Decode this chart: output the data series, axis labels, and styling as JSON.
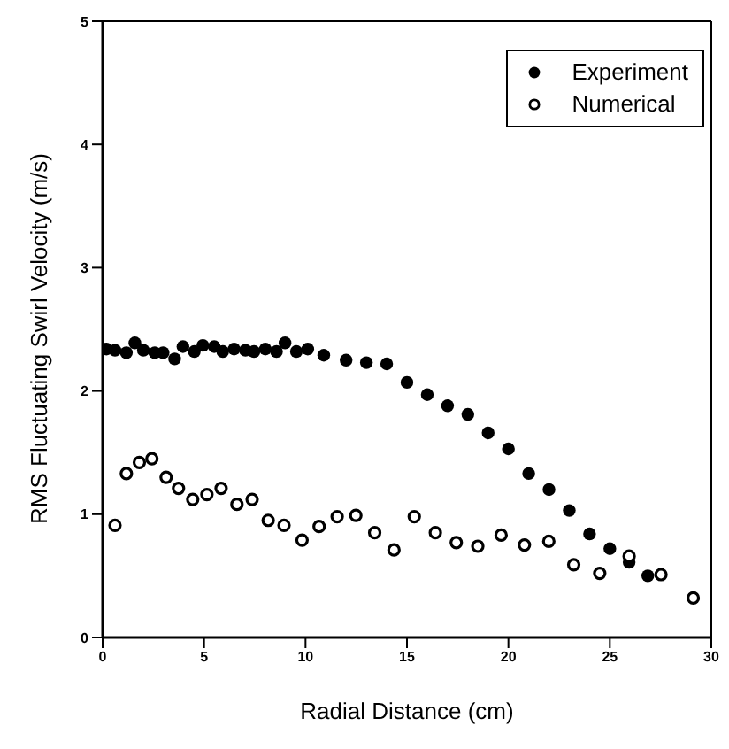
{
  "chart_data": {
    "type": "scatter",
    "xlabel": "Radial Distance (cm)",
    "ylabel": "RMS Fluctuating Swirl Velocity (m/s)",
    "xlim": [
      0,
      30
    ],
    "xticks": [
      0,
      5,
      10,
      15,
      20,
      25,
      30
    ],
    "ylim": [
      0,
      5
    ],
    "yticks": [
      0,
      1,
      2,
      3,
      4,
      5
    ],
    "grid": false,
    "legend": "top right",
    "marker": "circle",
    "series": [
      {
        "name": "Experiment",
        "color": "#000000",
        "x": [
          0.19,
          0.61,
          1.17,
          1.59,
          2.01,
          2.57,
          2.98,
          3.55,
          3.96,
          4.52,
          4.94,
          5.5,
          5.92,
          6.48,
          7.04,
          7.46,
          8.02,
          8.57,
          8.99,
          9.55,
          10.11,
          10.9,
          12.0,
          13.0,
          14.0,
          15.0,
          16.0,
          17.0,
          18.0,
          19.0,
          20.0,
          21.0,
          22.0,
          23.0,
          24.0,
          25.0,
          25.95,
          26.87
        ],
        "values": [
          2.34,
          2.33,
          2.31,
          2.39,
          2.33,
          2.31,
          2.31,
          2.26,
          2.36,
          2.32,
          2.37,
          2.36,
          2.32,
          2.34,
          2.33,
          2.32,
          2.34,
          2.32,
          2.39,
          2.32,
          2.34,
          2.29,
          2.25,
          2.23,
          2.22,
          2.07,
          1.97,
          1.88,
          1.81,
          1.66,
          1.53,
          1.33,
          1.2,
          1.03,
          0.84,
          0.72,
          0.61,
          0.5
        ]
      },
      {
        "name": "Numerical",
        "color": "#000000",
        "x": [
          0.61,
          1.17,
          1.81,
          2.43,
          3.13,
          3.74,
          4.44,
          5.14,
          5.84,
          6.62,
          7.37,
          8.16,
          8.94,
          9.83,
          10.67,
          11.56,
          12.48,
          13.41,
          14.36,
          15.36,
          16.4,
          17.43,
          18.49,
          19.64,
          20.79,
          21.99,
          23.22,
          24.5,
          25.95,
          27.52,
          29.11
        ],
        "values": [
          0.91,
          1.33,
          1.42,
          1.45,
          1.3,
          1.21,
          1.12,
          1.16,
          1.21,
          1.08,
          1.12,
          0.95,
          0.91,
          0.79,
          0.9,
          0.98,
          0.99,
          0.85,
          0.71,
          0.98,
          0.85,
          0.77,
          0.74,
          0.83,
          0.75,
          0.78,
          0.59,
          0.52,
          0.66,
          0.51,
          0.32
        ]
      }
    ]
  }
}
